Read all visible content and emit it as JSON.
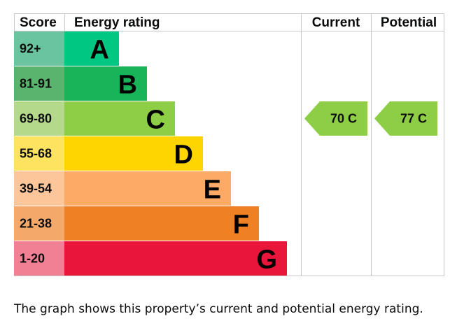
{
  "headers": {
    "score": "Score",
    "rating": "Energy rating",
    "current": "Current",
    "potential": "Potential"
  },
  "chart_data": {
    "type": "bar",
    "bands": [
      {
        "letter": "A",
        "score_range": "92+",
        "score_color": "#6ac4a0",
        "bar_color": "#00c781"
      },
      {
        "letter": "B",
        "score_range": "81-91",
        "score_color": "#5ab46e",
        "bar_color": "#19b459"
      },
      {
        "letter": "C",
        "score_range": "69-80",
        "score_color": "#b5d98a",
        "bar_color": "#8dce46"
      },
      {
        "letter": "D",
        "score_range": "55-68",
        "score_color": "#fde35f",
        "bar_color": "#ffd500"
      },
      {
        "letter": "E",
        "score_range": "39-54",
        "score_color": "#fcc69a",
        "bar_color": "#fcaa65"
      },
      {
        "letter": "F",
        "score_range": "21-38",
        "score_color": "#f4a86a",
        "bar_color": "#ef8023"
      },
      {
        "letter": "G",
        "score_range": "1-20",
        "score_color": "#f28095",
        "bar_color": "#e9153b"
      }
    ],
    "current": {
      "value": 70,
      "band": "C",
      "label": "70  C",
      "color": "#8dce46"
    },
    "potential": {
      "value": 77,
      "band": "C",
      "label": "77  C",
      "color": "#8dce46"
    }
  },
  "caption": "The graph shows this property’s current and potential energy rating."
}
